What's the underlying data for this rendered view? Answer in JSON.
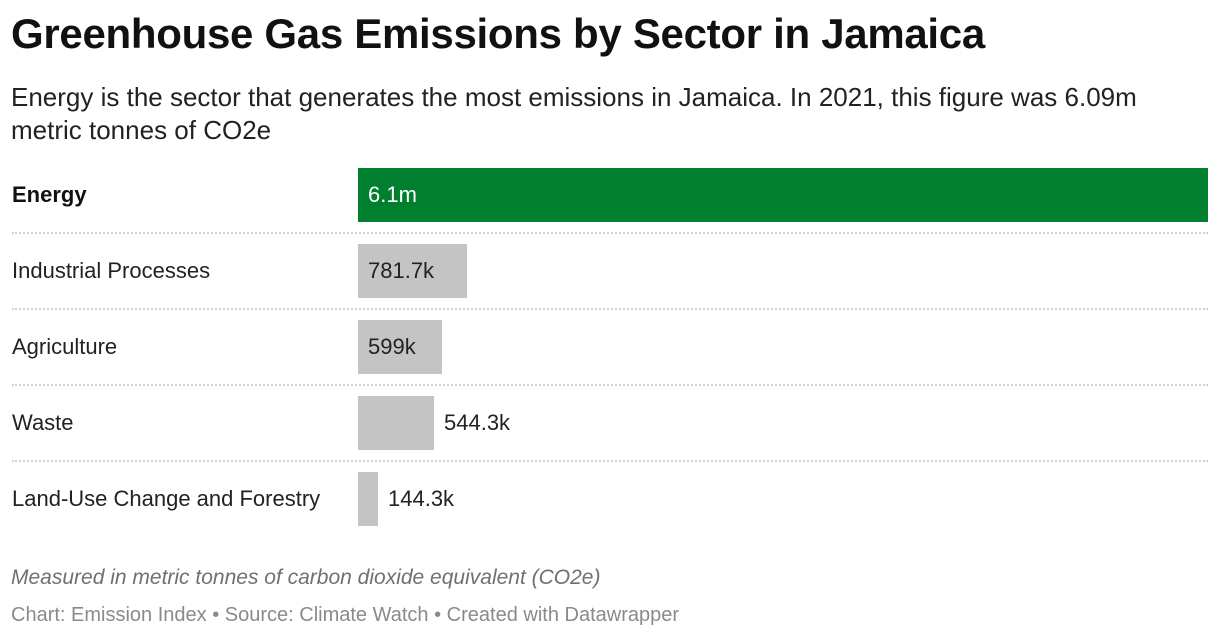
{
  "chart_data": {
    "type": "bar",
    "orientation": "horizontal",
    "title": "Greenhouse Gas Emissions by Sector in Jamaica",
    "subtitle": "Energy is the sector that generates the most emissions in Jamaica. In 2021, this figure was 6.09m metric tonnes of CO2e",
    "categories": [
      "Energy",
      "Industrial Processes",
      "Agriculture",
      "Waste",
      "Land-Use Change and Forestry"
    ],
    "values": [
      6090000,
      781700,
      599000,
      544300,
      144300
    ],
    "value_labels": [
      "6.1m",
      "781.7k",
      "599k",
      "544.3k",
      "144.3k"
    ],
    "highlight": "Energy",
    "colors": {
      "highlight": "#00802f",
      "default": "#c4c4c4"
    },
    "xlim": [
      0,
      6090000
    ],
    "grid": false,
    "notes": "Measured in metric tonnes of carbon dioxide equivalent (CO2e)",
    "footer": {
      "chart": "Chart: Emission Index",
      "source": "Source: Climate Watch",
      "credit": "Created with Datawrapper",
      "separator": " • "
    }
  }
}
